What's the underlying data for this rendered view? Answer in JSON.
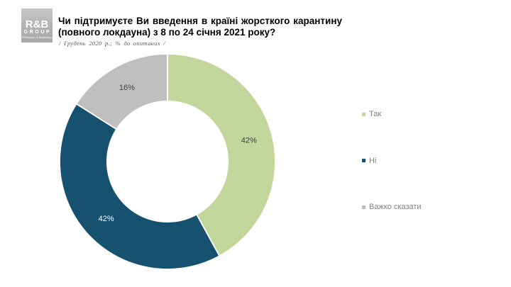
{
  "header": {
    "logo": {
      "line1": "R&B",
      "line2": "GROUP",
      "line3": "Research & Branding"
    },
    "title": "Чи підтримуєте Ви введення в країні жорсткого карантину (повного локдауна) з 8 по 24 січня 2021 року?",
    "subtitle": "/ Грудень 2020 р.; % до опитаних /"
  },
  "chart_data": {
    "type": "pie",
    "variant": "donut",
    "title": "Чи підтримуєте Ви введення в країні жорсткого карантину (повного локдауна) з 8 по 24 січня 2021 року?",
    "subtitle": "/ Грудень 2020 р.; % до опитаних /",
    "categories": [
      "Так",
      "Ні",
      "Важко сказати"
    ],
    "values": [
      42,
      42,
      16
    ],
    "data_labels": [
      "42%",
      "42%",
      "16%"
    ],
    "colors": [
      "#c3d69b",
      "#175170",
      "#bfbfbf"
    ],
    "data_label_colors": [
      "#3f3f3f",
      "#ffffff",
      "#3f3f3f"
    ],
    "start_angle_deg": 0,
    "clockwise": true,
    "inner_radius_ratio": 0.56,
    "slice_border_color": "#ffffff",
    "legend_position": "right",
    "legend_text_color": "#7f7f7f",
    "background": "#ffffff"
  }
}
